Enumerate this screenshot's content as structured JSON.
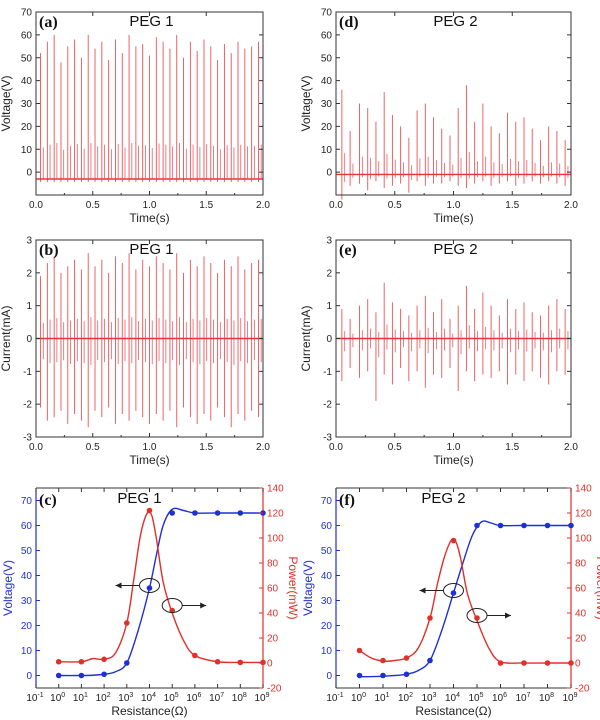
{
  "chart_data": [
    {
      "id": "a",
      "panel_label": "(a)",
      "type": "line",
      "title": "PEG 1",
      "xlabel": "Time(s)",
      "ylabel": "Voltage(V)",
      "xlim": [
        0,
        2.0
      ],
      "ylim": [
        -10,
        70
      ],
      "xticks": [
        0.0,
        0.5,
        1.0,
        1.5,
        2.0
      ],
      "xtick_labels": [
        "0.0",
        "0.5",
        "1.0",
        "1.5",
        "2.0"
      ],
      "yticks": [
        0,
        10,
        20,
        30,
        40,
        50,
        60,
        70
      ],
      "ytick_labels": [
        "0",
        "10",
        "20",
        "30",
        "40",
        "50",
        "60",
        "70"
      ],
      "baseline": -3,
      "series": [
        {
          "name": "Voltage",
          "color": "#e8343a",
          "spike_times": [
            0.04,
            0.1,
            0.16,
            0.22,
            0.28,
            0.34,
            0.4,
            0.46,
            0.52,
            0.58,
            0.64,
            0.7,
            0.76,
            0.82,
            0.88,
            0.94,
            1.0,
            1.06,
            1.12,
            1.18,
            1.24,
            1.3,
            1.36,
            1.42,
            1.48,
            1.54,
            1.6,
            1.66,
            1.72,
            1.78,
            1.84,
            1.9,
            1.96
          ],
          "spike_peaks": [
            52,
            57,
            60,
            48,
            55,
            58,
            50,
            60,
            54,
            57,
            49,
            58,
            52,
            60,
            55,
            56,
            51,
            59,
            57,
            54,
            60,
            50,
            57,
            53,
            58,
            55,
            49,
            56,
            52,
            57,
            54,
            55,
            57
          ]
        }
      ]
    },
    {
      "id": "b",
      "panel_label": "(b)",
      "type": "line",
      "title": "PEG 1",
      "xlabel": "Time(s)",
      "ylabel": "Current(mA)",
      "xlim": [
        0,
        2.0
      ],
      "ylim": [
        -3,
        3
      ],
      "xticks": [
        0.0,
        0.5,
        1.0,
        1.5,
        2.0
      ],
      "xtick_labels": [
        "0.0",
        "0.5",
        "1.0",
        "1.5",
        "2.0"
      ],
      "yticks": [
        -3,
        -2,
        -1,
        0,
        1,
        2,
        3
      ],
      "ytick_labels": [
        "-3",
        "-2",
        "-1",
        "0",
        "1",
        "2",
        "3"
      ],
      "baseline": 0,
      "series": [
        {
          "name": "Current",
          "color": "#e8343a",
          "spike_times": [
            0.04,
            0.1,
            0.16,
            0.22,
            0.28,
            0.34,
            0.4,
            0.46,
            0.52,
            0.58,
            0.64,
            0.7,
            0.76,
            0.82,
            0.88,
            0.94,
            1.0,
            1.06,
            1.12,
            1.18,
            1.24,
            1.3,
            1.36,
            1.42,
            1.48,
            1.54,
            1.6,
            1.66,
            1.72,
            1.78,
            1.84,
            1.9,
            1.96
          ],
          "spike_peaks": [
            1.9,
            2.3,
            2.5,
            2.0,
            2.2,
            2.4,
            2.1,
            2.6,
            2.2,
            2.4,
            2.0,
            2.5,
            2.3,
            2.6,
            2.1,
            2.4,
            2.2,
            2.5,
            2.3,
            2.1,
            2.6,
            2.0,
            2.4,
            2.2,
            2.5,
            2.3,
            2.0,
            2.4,
            2.2,
            2.5,
            2.1,
            2.3,
            2.4
          ],
          "spike_troughs": [
            -2.1,
            -2.5,
            -2.4,
            -2.2,
            -2.6,
            -2.3,
            -2.5,
            -2.7,
            -2.2,
            -2.4,
            -2.1,
            -2.6,
            -2.3,
            -2.5,
            -2.2,
            -2.4,
            -2.6,
            -2.3,
            -2.5,
            -2.2,
            -2.7,
            -2.1,
            -2.4,
            -2.6,
            -2.3,
            -2.5,
            -2.1,
            -2.4,
            -2.7,
            -2.3,
            -2.5,
            -2.2,
            -2.4
          ]
        }
      ]
    },
    {
      "id": "c",
      "panel_label": "(c)",
      "type": "line",
      "title": "PEG 1",
      "xlabel": "Resistance(Ω)",
      "ylabel": "Voltage(V)",
      "ylabel_right": "Power(mW)",
      "xscale": "log",
      "xlim_exp": [
        -1,
        9
      ],
      "xtick_exponents": [
        -1,
        0,
        1,
        2,
        3,
        4,
        5,
        6,
        7,
        8,
        9
      ],
      "ylim": [
        -5,
        75
      ],
      "yticks": [
        0,
        10,
        20,
        30,
        40,
        50,
        60,
        70
      ],
      "ytick_labels": [
        "0",
        "10",
        "20",
        "30",
        "40",
        "50",
        "60",
        "70"
      ],
      "ylim_right": [
        -20,
        140
      ],
      "yticks_right": [
        -20,
        0,
        20,
        40,
        60,
        80,
        100,
        120,
        140
      ],
      "ytick_labels_right": [
        "-20",
        "0",
        "20",
        "40",
        "60",
        "80",
        "100",
        "120",
        "140"
      ],
      "series": [
        {
          "name": "Voltage",
          "axis": "left",
          "color": "#1f2fd6",
          "log_x": [
            0,
            1,
            2,
            3,
            4,
            5,
            6,
            7,
            8,
            9
          ],
          "y": [
            0,
            0,
            0.5,
            5,
            35,
            65,
            65,
            65,
            65,
            65
          ],
          "curve_log_x": [
            0,
            1,
            1.5,
            2,
            2.5,
            3,
            3.5,
            4,
            4.3,
            4.6,
            5,
            5.5,
            6,
            7,
            8,
            9
          ],
          "curve_y": [
            0,
            0,
            0.1,
            0.5,
            1.5,
            5,
            18,
            35,
            48,
            60,
            66.5,
            66,
            65,
            65,
            65,
            65
          ]
        },
        {
          "name": "Power",
          "axis": "right",
          "color": "#e0302a",
          "log_x": [
            0,
            1,
            2,
            3,
            4,
            5,
            6,
            7,
            8,
            9
          ],
          "y": [
            1,
            1,
            3,
            32,
            122,
            42,
            6,
            1,
            0.5,
            0.5
          ],
          "curve_log_x": [
            0,
            1,
            1.5,
            2,
            2.5,
            3,
            3.3,
            3.6,
            3.9,
            4.1,
            4.3,
            4.6,
            5,
            5.5,
            6,
            7,
            8,
            9
          ],
          "curve_y": [
            1,
            1,
            3.5,
            3,
            8,
            32,
            66,
            102,
            120,
            118,
            100,
            65,
            40,
            18,
            6,
            1,
            0.5,
            0.5
          ]
        }
      ],
      "annotations": [
        {
          "kind": "ellipse-arrow",
          "log_x": 4.0,
          "y": 36,
          "dir": "left"
        },
        {
          "kind": "ellipse-arrow",
          "log_x": 5.0,
          "y": 28,
          "dir": "right"
        }
      ]
    },
    {
      "id": "d",
      "panel_label": "(d)",
      "type": "line",
      "title": "PEG 2",
      "xlabel": "Time(s)",
      "ylabel": "Voltage(V)",
      "xlim": [
        0,
        2.0
      ],
      "ylim": [
        -10,
        70
      ],
      "xticks": [
        0.0,
        0.5,
        1.0,
        1.5,
        2.0
      ],
      "xtick_labels": [
        "0.0",
        "0.5",
        "1.0",
        "1.5",
        "2.0"
      ],
      "yticks": [
        0,
        10,
        20,
        30,
        40,
        50,
        60,
        70
      ],
      "ytick_labels": [
        "0",
        "10",
        "20",
        "30",
        "40",
        "50",
        "60",
        "70"
      ],
      "baseline": -1,
      "series": [
        {
          "name": "Voltage",
          "color": "#e8343a",
          "spike_times": [
            0.05,
            0.12,
            0.2,
            0.27,
            0.34,
            0.41,
            0.48,
            0.55,
            0.62,
            0.69,
            0.76,
            0.83,
            0.9,
            0.97,
            1.04,
            1.11,
            1.18,
            1.25,
            1.32,
            1.39,
            1.46,
            1.53,
            1.6,
            1.67,
            1.74,
            1.81,
            1.88,
            1.95
          ],
          "spike_peaks": [
            36,
            18,
            30,
            28,
            22,
            35,
            25,
            20,
            15,
            27,
            30,
            24,
            19,
            16,
            28,
            38,
            22,
            30,
            20,
            17,
            26,
            22,
            24,
            19,
            14,
            20,
            18,
            14
          ],
          "spike_troughs": [
            -12,
            -6,
            -5,
            -8,
            -4,
            -7,
            -6,
            -5,
            -9,
            -4,
            -6,
            -5,
            -5,
            -4,
            -6,
            -7,
            -5,
            -4,
            -6,
            -5,
            -4,
            -6,
            -5,
            -4,
            -5,
            -4,
            -5,
            -6
          ]
        }
      ]
    },
    {
      "id": "e",
      "panel_label": "(e)",
      "type": "line",
      "title": "PEG 2",
      "xlabel": "Time(s)",
      "ylabel": "Current(mA)",
      "xlim": [
        0,
        2.0
      ],
      "ylim": [
        -3,
        3
      ],
      "xticks": [
        0.0,
        0.5,
        1.0,
        1.5,
        2.0
      ],
      "xtick_labels": [
        "0.0",
        "0.5",
        "1.0",
        "1.5",
        "2.0"
      ],
      "yticks": [
        -3,
        -2,
        -1,
        0,
        1,
        2,
        3
      ],
      "ytick_labels": [
        "-3",
        "-2",
        "-1",
        "0",
        "1",
        "2",
        "3"
      ],
      "baseline": 0,
      "series": [
        {
          "name": "Current",
          "color": "#e8343a",
          "spike_times": [
            0.05,
            0.12,
            0.2,
            0.27,
            0.34,
            0.41,
            0.48,
            0.55,
            0.62,
            0.69,
            0.76,
            0.83,
            0.9,
            0.97,
            1.04,
            1.11,
            1.18,
            1.25,
            1.32,
            1.39,
            1.46,
            1.53,
            1.6,
            1.67,
            1.74,
            1.81,
            1.88,
            1.95
          ],
          "spike_peaks": [
            0.9,
            0.6,
            1.0,
            1.2,
            0.8,
            1.7,
            1.1,
            0.9,
            0.7,
            1.0,
            1.3,
            0.8,
            1.2,
            0.6,
            1.0,
            1.6,
            0.9,
            1.4,
            1.0,
            0.7,
            1.2,
            0.9,
            1.1,
            0.8,
            0.7,
            1.0,
            1.2,
            0.9
          ],
          "spike_troughs": [
            -1.3,
            -0.9,
            -1.2,
            -1.0,
            -1.9,
            -1.1,
            -1.4,
            -0.9,
            -1.3,
            -1.0,
            -1.5,
            -1.1,
            -1.2,
            -0.9,
            -1.6,
            -1.0,
            -1.3,
            -1.1,
            -1.2,
            -1.0,
            -1.4,
            -1.1,
            -1.3,
            -1.0,
            -1.2,
            -1.4,
            -1.0,
            -1.1
          ]
        }
      ]
    },
    {
      "id": "f",
      "panel_label": "(f)",
      "type": "line",
      "title": "PEG 2",
      "xlabel": "Resistance(Ω)",
      "ylabel": "Voltage(V)",
      "ylabel_right": "Power(mW)",
      "xscale": "log",
      "xlim_exp": [
        -1,
        9
      ],
      "xtick_exponents": [
        -1,
        0,
        1,
        2,
        3,
        4,
        5,
        6,
        7,
        8,
        9
      ],
      "ylim": [
        -5,
        75
      ],
      "yticks": [
        0,
        10,
        20,
        30,
        40,
        50,
        60,
        70
      ],
      "ytick_labels": [
        "0",
        "10",
        "20",
        "30",
        "40",
        "50",
        "60",
        "70"
      ],
      "ylim_right": [
        -20,
        140
      ],
      "yticks_right": [
        -20,
        0,
        20,
        40,
        60,
        80,
        100,
        120,
        140
      ],
      "ytick_labels_right": [
        "-20",
        "0",
        "20",
        "40",
        "60",
        "80",
        "100",
        "120",
        "140"
      ],
      "series": [
        {
          "name": "Voltage",
          "axis": "left",
          "color": "#1f2fd6",
          "log_x": [
            0,
            1,
            2,
            3,
            4,
            5,
            6,
            7,
            8,
            9
          ],
          "y": [
            0,
            0,
            0.5,
            6,
            33,
            60,
            60,
            60,
            60,
            60
          ],
          "curve_log_x": [
            0,
            1,
            1.5,
            2,
            2.5,
            3,
            3.5,
            4,
            4.4,
            4.8,
            5.2,
            5.6,
            6,
            7,
            8,
            9
          ],
          "curve_y": [
            -0.5,
            -0.3,
            0,
            0.5,
            2,
            6,
            18,
            33,
            45,
            56,
            61.5,
            61,
            60,
            60,
            60,
            60
          ]
        },
        {
          "name": "Power",
          "axis": "right",
          "color": "#e0302a",
          "log_x": [
            0,
            1,
            2,
            3,
            4,
            5,
            6,
            7,
            8,
            9
          ],
          "y": [
            10,
            2,
            4,
            36,
            98,
            36,
            0,
            0,
            0,
            0
          ],
          "curve_log_x": [
            0,
            0.5,
            1,
            1.5,
            2,
            2.5,
            3,
            3.3,
            3.6,
            3.9,
            4.1,
            4.3,
            4.6,
            5,
            5.5,
            6,
            7,
            8,
            9
          ],
          "curve_y": [
            10,
            4,
            1.5,
            2,
            4,
            12,
            36,
            62,
            84,
            98,
            97,
            84,
            55,
            34,
            12,
            1,
            0,
            0,
            0
          ]
        }
      ],
      "annotations": [
        {
          "kind": "ellipse-arrow",
          "log_x": 4.0,
          "y": 34,
          "dir": "left"
        },
        {
          "kind": "ellipse-arrow",
          "log_x": 5.0,
          "y": 24,
          "dir": "right"
        }
      ]
    }
  ]
}
